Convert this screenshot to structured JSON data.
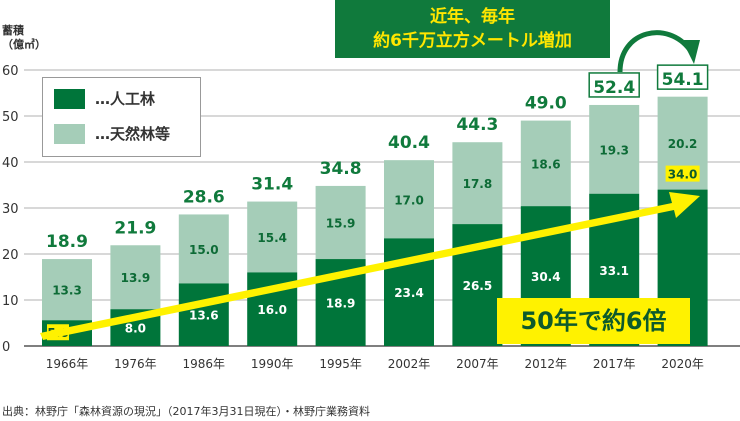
{
  "chart_data": {
    "type": "bar",
    "stacked": true,
    "ylabel": "蓄積\n（億㎥）",
    "ylabel_lines": [
      "蓄積",
      "（億㎥）"
    ],
    "ylim": [
      0,
      60
    ],
    "yticks": [
      0,
      10,
      20,
      30,
      40,
      50,
      60
    ],
    "grid": true,
    "legend_position": "top-left",
    "categories": [
      "1966年",
      "1976年",
      "1986年",
      "1990年",
      "1995年",
      "2002年",
      "2007年",
      "2012年",
      "2017年",
      "2020年"
    ],
    "series": [
      {
        "name": "…人工林",
        "color": "#00753a",
        "values": [
          5.6,
          8.0,
          13.6,
          16.0,
          18.9,
          23.4,
          26.5,
          30.4,
          33.1,
          34.0
        ]
      },
      {
        "name": "…天然林等",
        "color": "#a5cdb8",
        "values": [
          13.3,
          13.9,
          15.0,
          15.4,
          15.9,
          17.0,
          17.8,
          18.6,
          19.3,
          20.2
        ]
      }
    ],
    "totals": [
      18.9,
      21.9,
      28.6,
      31.4,
      34.8,
      40.4,
      44.3,
      49.0,
      52.4,
      54.1
    ],
    "annotations": {
      "note_lines": [
        "近年、毎年",
        "約6千万立方メートル増加"
      ],
      "callout": "50年で約6倍"
    }
  },
  "source": "出典：林野庁「森林資源の現況」（2017年3月31日現在）・林野庁業務資料"
}
